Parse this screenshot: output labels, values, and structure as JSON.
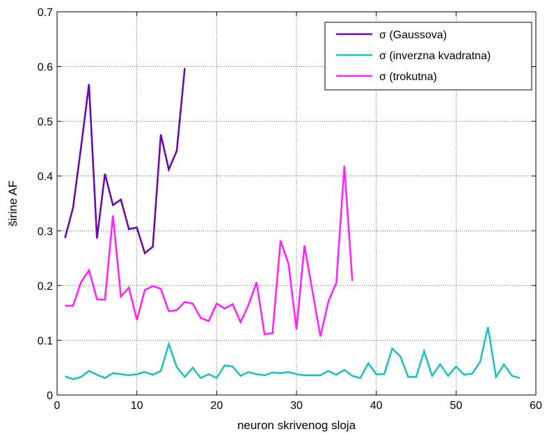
{
  "chart_data": {
    "type": "line",
    "xlabel": "neuron skrivenog sloja",
    "ylabel": "širine AF",
    "xlim": [
      0,
      60
    ],
    "ylim": [
      0,
      0.7
    ],
    "xticks": [
      "0",
      "10",
      "20",
      "30",
      "40",
      "50",
      "60"
    ],
    "yticks": [
      "0",
      "0.1",
      "0.2",
      "0.3",
      "0.4",
      "0.5",
      "0.6",
      "0.7"
    ],
    "grid": true,
    "legend_position": "top-right",
    "series": [
      {
        "name": "σ (Gaussova)",
        "color": "#6a0aab",
        "x": [
          1,
          2,
          3,
          4,
          5,
          6,
          7,
          8,
          9,
          10,
          11,
          12,
          13,
          14,
          15,
          16
        ],
        "y": [
          0.287,
          0.342,
          0.452,
          0.568,
          0.286,
          0.404,
          0.347,
          0.357,
          0.303,
          0.306,
          0.259,
          0.271,
          0.476,
          0.412,
          0.446,
          0.597
        ]
      },
      {
        "name": "σ (inverzna kvadratna)",
        "color": "#1ec1c1",
        "x": [
          1,
          2,
          3,
          4,
          5,
          6,
          7,
          8,
          9,
          10,
          11,
          12,
          13,
          14,
          15,
          16,
          17,
          18,
          19,
          20,
          21,
          22,
          23,
          24,
          25,
          26,
          27,
          28,
          29,
          30,
          31,
          32,
          33,
          34,
          35,
          36,
          37,
          38,
          39,
          40,
          41,
          42,
          43,
          44,
          45,
          46,
          47,
          48,
          49,
          50,
          51,
          52,
          53,
          54,
          55,
          56,
          57,
          58
        ],
        "y": [
          0.034,
          0.029,
          0.033,
          0.044,
          0.037,
          0.031,
          0.04,
          0.038,
          0.036,
          0.038,
          0.042,
          0.037,
          0.044,
          0.093,
          0.051,
          0.033,
          0.05,
          0.031,
          0.038,
          0.031,
          0.054,
          0.052,
          0.035,
          0.042,
          0.038,
          0.036,
          0.041,
          0.04,
          0.042,
          0.038,
          0.036,
          0.036,
          0.036,
          0.044,
          0.037,
          0.046,
          0.035,
          0.031,
          0.058,
          0.038,
          0.038,
          0.085,
          0.071,
          0.033,
          0.033,
          0.08,
          0.035,
          0.056,
          0.035,
          0.052,
          0.037,
          0.039,
          0.06,
          0.124,
          0.033,
          0.056,
          0.035,
          0.031
        ]
      },
      {
        "name": "σ (trokutna)",
        "color": "#ff22ff",
        "x": [
          1,
          2,
          3,
          4,
          5,
          6,
          7,
          8,
          9,
          10,
          11,
          12,
          13,
          14,
          15,
          16,
          17,
          18,
          19,
          20,
          21,
          22,
          23,
          24,
          25,
          26,
          27,
          28,
          29,
          30,
          31,
          32,
          33,
          34,
          35,
          36,
          37
        ],
        "y": [
          0.163,
          0.163,
          0.206,
          0.228,
          0.175,
          0.174,
          0.328,
          0.18,
          0.196,
          0.137,
          0.192,
          0.199,
          0.194,
          0.153,
          0.155,
          0.17,
          0.167,
          0.141,
          0.135,
          0.167,
          0.158,
          0.166,
          0.133,
          0.165,
          0.206,
          0.111,
          0.113,
          0.282,
          0.24,
          0.12,
          0.273,
          0.19,
          0.107,
          0.171,
          0.205,
          0.419,
          0.208
        ]
      }
    ]
  }
}
